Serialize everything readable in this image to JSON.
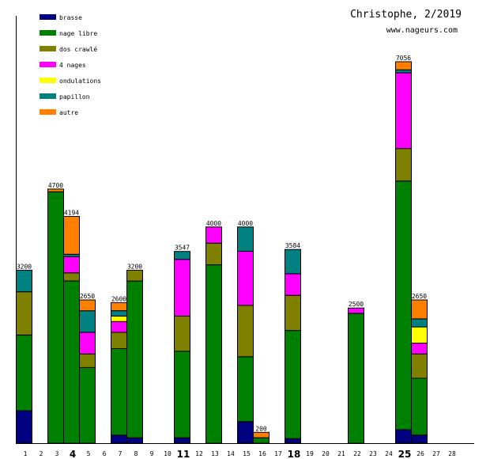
{
  "chart_data": {
    "type": "bar",
    "stacked": true,
    "title": "Christophe, 2/2019",
    "subtitle": "www.nageurs.com",
    "xlabel": "",
    "ylabel": "",
    "ylim": [
      0,
      7056
    ],
    "legend_position": "top-left",
    "categories": [
      "1",
      "2",
      "3",
      "4",
      "5",
      "6",
      "7",
      "8",
      "9",
      "10",
      "11",
      "12",
      "13",
      "14",
      "15",
      "16",
      "17",
      "18",
      "19",
      "20",
      "21",
      "22",
      "23",
      "24",
      "25",
      "26",
      "27",
      "28"
    ],
    "bold_categories": [
      "4",
      "11",
      "18",
      "25"
    ],
    "series": [
      {
        "name": "brasse",
        "color": "#000080",
        "values": [
          600,
          0,
          0,
          0,
          0,
          0,
          150,
          100,
          0,
          0,
          100,
          0,
          0,
          0,
          400,
          0,
          0,
          84,
          0,
          0,
          0,
          0,
          0,
          0,
          250,
          150,
          0,
          0
        ]
      },
      {
        "name": "nage libre",
        "color": "#008000",
        "values": [
          1400,
          0,
          4650,
          3000,
          1400,
          0,
          1600,
          2900,
          0,
          0,
          1600,
          0,
          3300,
          0,
          1200,
          100,
          0,
          2000,
          0,
          0,
          0,
          2400,
          0,
          0,
          4600,
          1050,
          0,
          0
        ]
      },
      {
        "name": "dos crawlé",
        "color": "#808000",
        "values": [
          800,
          0,
          0,
          150,
          250,
          0,
          300,
          200,
          0,
          0,
          650,
          0,
          400,
          0,
          950,
          0,
          0,
          650,
          0,
          0,
          0,
          0,
          0,
          0,
          600,
          450,
          0,
          0
        ]
      },
      {
        "name": "4 nages",
        "color": "#FF00FF",
        "values": [
          0,
          0,
          0,
          300,
          400,
          0,
          200,
          0,
          0,
          0,
          1050,
          0,
          300,
          0,
          1000,
          0,
          0,
          400,
          0,
          0,
          0,
          100,
          0,
          0,
          1400,
          200,
          0,
          0
        ]
      },
      {
        "name": "ondulations",
        "color": "#FFFF00",
        "values": [
          0,
          0,
          0,
          0,
          0,
          0,
          100,
          0,
          0,
          0,
          0,
          0,
          0,
          0,
          0,
          0,
          0,
          0,
          0,
          0,
          0,
          0,
          0,
          0,
          0,
          300,
          0,
          0
        ]
      },
      {
        "name": "papillon",
        "color": "#008080",
        "values": [
          400,
          0,
          0,
          44,
          400,
          0,
          100,
          0,
          0,
          0,
          147,
          0,
          0,
          0,
          450,
          0,
          0,
          450,
          0,
          0,
          0,
          0,
          0,
          0,
          56,
          150,
          0,
          0
        ]
      },
      {
        "name": "autre",
        "color": "#FF8000",
        "values": [
          0,
          0,
          50,
          700,
          200,
          0,
          150,
          0,
          0,
          0,
          0,
          0,
          0,
          0,
          0,
          100,
          0,
          0,
          0,
          0,
          0,
          0,
          0,
          0,
          150,
          350,
          0,
          0
        ]
      }
    ],
    "totals": [
      "3200",
      "",
      "4700",
      "4194",
      "2650",
      "",
      "2600",
      "3200",
      "",
      "",
      "3547",
      "",
      "4000",
      "",
      "4000",
      "200",
      "",
      "3584",
      "",
      "",
      "",
      "2500",
      "",
      "",
      "7056",
      "2650",
      "",
      ""
    ]
  }
}
